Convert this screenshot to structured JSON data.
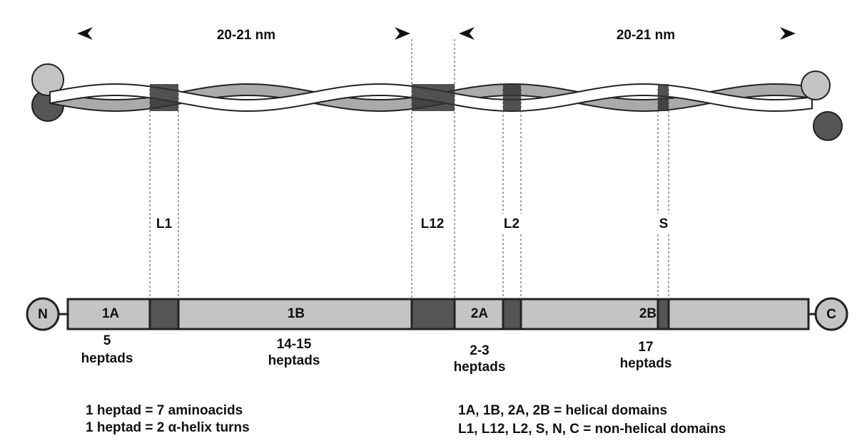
{
  "dimensions": [
    {
      "label": "20-21 nm"
    },
    {
      "label": "20-21 nm"
    }
  ],
  "linkers": [
    "L1",
    "L12",
    "L2",
    "S"
  ],
  "termini": {
    "n": "N",
    "c": "C"
  },
  "domains": [
    {
      "label": "1A",
      "count": "5",
      "unit": "heptads"
    },
    {
      "label": "1B",
      "count": "14-15",
      "unit": "heptads"
    },
    {
      "label": "2A",
      "count": "2-3",
      "unit": "heptads"
    },
    {
      "label": "2B",
      "count": "17",
      "unit": "heptads"
    }
  ],
  "notes": {
    "left": [
      "1 heptad = 7 aminoacids",
      "1 heptad = 2 α-helix turns"
    ],
    "right": [
      "1A, 1B, 2A, 2B = helical domains",
      "L1, L12, L2, S, N, C = non-helical domains"
    ]
  }
}
